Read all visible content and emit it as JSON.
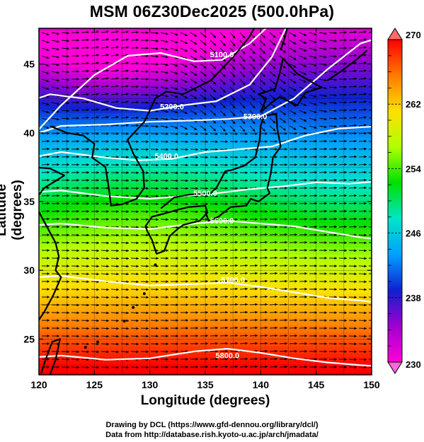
{
  "title": "MSM 06Z30Dec2025 (500.0hPa)",
  "xlabel": "Longitude (degrees)",
  "ylabel": "Latitude  (degrees)",
  "credit_line1": "Drawing by DCL (https://www.gfd-dennou.org/library/dcl/)",
  "credit_line2": "Data from http://database.rish.kyoto-u.ac.jp/arch/jmadata/",
  "map": {
    "lon_range": [
      120,
      150
    ],
    "lat_range": [
      22.4,
      47.6
    ],
    "lon_ticks": [
      120,
      125,
      130,
      135,
      140,
      145,
      150
    ],
    "lon_tick_labels": [
      "120",
      "125",
      "130",
      "135",
      "140",
      "145",
      "150"
    ],
    "lat_ticks": [
      25,
      30,
      35,
      40,
      45
    ],
    "lat_tick_labels": [
      "25",
      "30",
      "35",
      "40",
      "45"
    ],
    "field_min": 230,
    "field_max": 270,
    "contour_color": "#ffffff",
    "coast_color": "#000000",
    "vector_color": "#000000"
  },
  "colorbar": {
    "min": 230,
    "max": 270,
    "labels": [
      "270",
      "262",
      "254",
      "246",
      "238",
      "230"
    ],
    "label_values": [
      270,
      262,
      254,
      246,
      238,
      230
    ],
    "stops": [
      "#ff0000",
      "#ff7a00",
      "#ffe000",
      "#b0ff00",
      "#00e000",
      "#00e6c8",
      "#00a0ff",
      "#1020d0",
      "#a000d0",
      "#ff00d8"
    ],
    "top_cap_color": "#ff6a6a",
    "bottom_cap_color": "#ff66dd"
  },
  "contours": [
    {
      "label": "5100.0",
      "lon": 136.5,
      "lat": 45.5
    },
    {
      "label": "5200.0",
      "lon": 132.0,
      "lat": 41.7
    },
    {
      "label": "5300.0",
      "lon": 139.5,
      "lat": 41.0
    },
    {
      "label": "5400.0",
      "lon": 131.5,
      "lat": 38.1
    },
    {
      "label": "5500.0",
      "lon": 135.0,
      "lat": 35.4
    },
    {
      "label": "5600.0",
      "lon": 136.5,
      "lat": 33.4
    },
    {
      "label": "5700.0",
      "lon": 137.5,
      "lat": 29.1
    },
    {
      "label": "5800.0",
      "lon": 137.0,
      "lat": 23.6
    }
  ]
}
